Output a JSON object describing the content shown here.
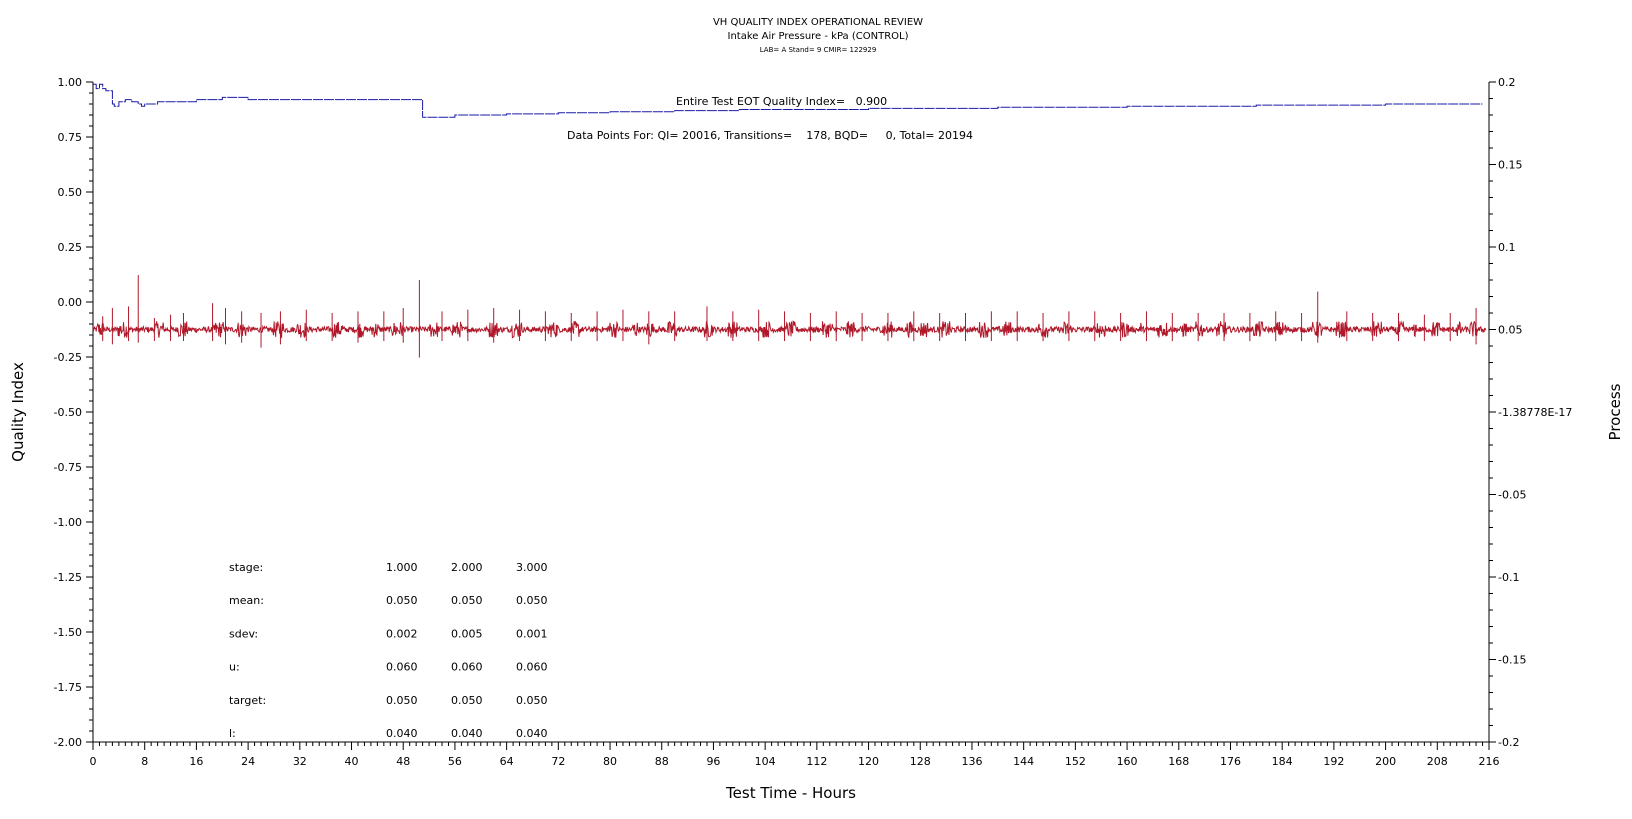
{
  "header": {
    "title": "VH QUALITY INDEX OPERATIONAL REVIEW",
    "subtitle": "Intake Air Pressure - kPa (CONTROL)",
    "subsubtitle": "LAB= A Stand= 9 CMIR= 122929"
  },
  "annotations": {
    "eot_qi": "Entire Test EOT Quality Index=   0.900",
    "data_points": "Data Points For: QI= 20016, Transitions=    178, BQD=     0, Total= 20194"
  },
  "stats_table": {
    "rows": [
      {
        "label": "stage:",
        "values": [
          "1.000",
          "2.000",
          "3.000"
        ]
      },
      {
        "label": "mean:",
        "values": [
          "0.050",
          "0.050",
          "0.050"
        ]
      },
      {
        "label": "sdev:",
        "values": [
          "0.002",
          "0.005",
          "0.001"
        ]
      },
      {
        "label": "u:",
        "values": [
          "0.060",
          "0.060",
          "0.060"
        ]
      },
      {
        "label": "target:",
        "values": [
          "0.050",
          "0.050",
          "0.050"
        ]
      },
      {
        "label": "l:",
        "values": [
          "0.040",
          "0.040",
          "0.040"
        ]
      }
    ]
  },
  "colors": {
    "qi_line": "#1a1aa6",
    "process_line": "#b0182a",
    "axis": "#000000"
  },
  "chart_data": {
    "type": "line",
    "title": "VH QUALITY INDEX OPERATIONAL REVIEW",
    "xlabel": "Test Time - Hours",
    "ylabel": "Quality Index",
    "y2label": "Process",
    "xlim": [
      0,
      216
    ],
    "ylim": [
      -2.0,
      1.0
    ],
    "y2lim": [
      -0.2,
      0.2
    ],
    "x_ticks": [
      0,
      8,
      16,
      24,
      32,
      40,
      48,
      56,
      64,
      72,
      80,
      88,
      96,
      104,
      112,
      120,
      128,
      136,
      144,
      152,
      160,
      168,
      176,
      184,
      192,
      200,
      208,
      216
    ],
    "y_ticks": [
      "1.00",
      "0.75",
      "0.50",
      "0.25",
      "0.00",
      "-0.25",
      "-0.50",
      "-0.75",
      "-1.00",
      "-1.25",
      "-1.50",
      "-1.75",
      "-2.00"
    ],
    "y2_ticks": [
      "0.2",
      "0.15",
      "0.1",
      "0.05",
      "-1.38778E-17",
      "-0.05",
      "-0.1",
      "-0.15",
      "-0.2"
    ],
    "grid": false,
    "series": [
      {
        "axis": "left",
        "x": [
          0,
          0.5,
          1,
          1.5,
          2,
          3,
          3.3,
          4,
          5,
          6,
          7,
          7.5,
          8,
          10,
          12,
          16,
          18,
          20,
          24,
          30,
          40,
          50.5,
          51,
          56,
          64,
          72,
          80,
          90,
          100,
          110,
          120,
          130,
          140,
          150,
          160,
          170,
          180,
          190,
          200,
          210,
          215
        ],
        "values": [
          0.99,
          0.97,
          0.99,
          0.97,
          0.96,
          0.9,
          0.89,
          0.91,
          0.92,
          0.91,
          0.9,
          0.89,
          0.9,
          0.91,
          0.91,
          0.92,
          0.92,
          0.93,
          0.92,
          0.92,
          0.92,
          0.92,
          0.84,
          0.85,
          0.855,
          0.86,
          0.865,
          0.87,
          0.875,
          0.875,
          0.88,
          0.88,
          0.885,
          0.885,
          0.89,
          0.89,
          0.895,
          0.895,
          0.9,
          0.9,
          0.9
        ]
      },
      {
        "axis": "right",
        "baseline": 0.05,
        "typical_range": [
          0.045,
          0.055
        ],
        "spike_x": [
          1.5,
          3,
          5.5,
          7,
          9.5,
          12,
          14,
          18.5,
          20.5,
          23,
          26,
          29,
          33,
          37,
          41,
          45,
          48,
          50.5,
          54,
          58,
          62,
          66,
          70,
          74,
          78,
          82,
          86,
          90,
          95,
          99,
          103,
          107,
          111,
          115,
          119,
          123,
          127,
          131,
          135,
          139,
          143,
          147,
          151,
          155,
          159,
          163,
          167,
          171,
          175,
          179,
          183,
          187,
          189.5,
          194,
          198,
          202,
          206,
          210,
          214
        ],
        "spike_high": [
          0.058,
          0.063,
          0.064,
          0.083,
          0.057,
          0.059,
          0.06,
          0.066,
          0.063,
          0.061,
          0.06,
          0.061,
          0.062,
          0.06,
          0.061,
          0.061,
          0.063,
          0.08,
          0.061,
          0.062,
          0.063,
          0.062,
          0.061,
          0.06,
          0.061,
          0.062,
          0.061,
          0.061,
          0.064,
          0.061,
          0.062,
          0.061,
          0.06,
          0.061,
          0.06,
          0.06,
          0.061,
          0.06,
          0.06,
          0.061,
          0.061,
          0.06,
          0.061,
          0.061,
          0.06,
          0.061,
          0.06,
          0.06,
          0.06,
          0.06,
          0.061,
          0.06,
          0.073,
          0.061,
          0.06,
          0.06,
          0.059,
          0.06,
          0.063
        ],
        "spike_low": [
          0.043,
          0.041,
          0.043,
          0.042,
          0.043,
          0.043,
          0.043,
          0.043,
          0.041,
          0.042,
          0.039,
          0.041,
          0.043,
          0.043,
          0.042,
          0.043,
          0.042,
          0.033,
          0.043,
          0.043,
          0.042,
          0.043,
          0.043,
          0.043,
          0.043,
          0.043,
          0.041,
          0.043,
          0.043,
          0.043,
          0.043,
          0.043,
          0.043,
          0.043,
          0.043,
          0.043,
          0.043,
          0.043,
          0.043,
          0.043,
          0.043,
          0.043,
          0.043,
          0.043,
          0.043,
          0.043,
          0.043,
          0.043,
          0.043,
          0.043,
          0.043,
          0.043,
          0.042,
          0.043,
          0.043,
          0.043,
          0.043,
          0.043,
          0.041
        ]
      }
    ]
  }
}
